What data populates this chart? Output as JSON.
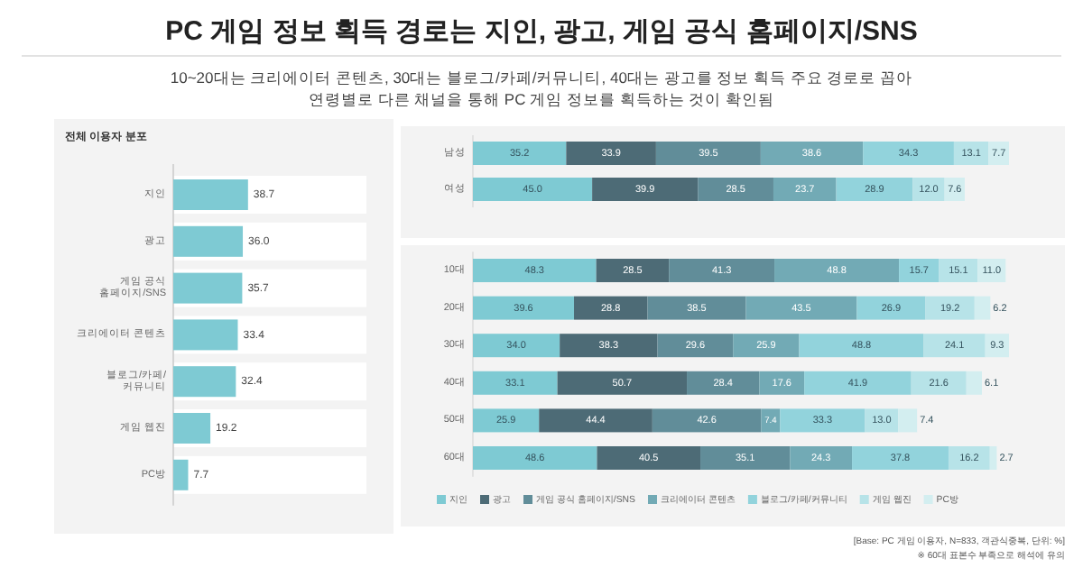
{
  "chart_data": [
    {
      "type": "bar",
      "orientation": "horizontal",
      "title": "PC 게임 정보 획득 경로는 지인, 광고, 게임 공식 홈페이지/SNS",
      "subtitle": "10~20대는 크리에이터 콘텐츠, 30대는 블로그/카페/커뮤니티, 40대는 광고를 정보 획득 주요 경로로 꼽아\n연령별로 다른 채널을 통해 PC 게임 정보를 획득하는 것이 확인됨",
      "annotations": [
        "전체 이용자 분포"
      ],
      "categories": [
        "지인",
        "광고",
        "게임 공식\n홈페이지/SNS",
        "크리에이터 콘텐츠",
        "블로그/카페/\n커뮤니티",
        "게임 웹진",
        "PC방"
      ],
      "values": [
        38.7,
        36.0,
        35.7,
        33.4,
        32.4,
        19.2,
        7.7
      ],
      "value_labels": [
        "38.7",
        "36.0",
        "35.7",
        "33.4",
        "32.4",
        "19.2",
        "7.7"
      ],
      "color": "#7ecad3",
      "legend": false
    },
    {
      "type": "bar",
      "orientation": "horizontal",
      "stacked": true,
      "legend": false,
      "categories": [
        "남성",
        "여성"
      ],
      "series": [
        {
          "color": "#7ecad3",
          "values": [
            35.2,
            45.0
          ],
          "value_labels": [
            "35.2",
            "45.0"
          ]
        },
        {
          "color": "#4d6b76",
          "values": [
            33.9,
            39.9
          ],
          "value_labels": [
            "33.9",
            "39.9"
          ]
        },
        {
          "color": "#618d99",
          "values": [
            39.5,
            28.5
          ],
          "value_labels": [
            "39.5",
            "28.5"
          ]
        },
        {
          "color": "#72aab5",
          "values": [
            38.6,
            23.7
          ],
          "value_labels": [
            "38.6",
            "23.7"
          ]
        },
        {
          "color": "#92d3dc",
          "values": [
            34.3,
            28.9
          ],
          "value_labels": [
            "34.3",
            "28.9"
          ]
        },
        {
          "color": "#b7e3e8",
          "values": [
            13.1,
            12.0
          ],
          "value_labels": [
            "13.1",
            "12.0"
          ]
        },
        {
          "color": "#d3eef0",
          "values": [
            7.7,
            7.6
          ],
          "value_labels": [
            "7.7",
            "7.6"
          ]
        }
      ]
    },
    {
      "type": "bar",
      "orientation": "horizontal",
      "stacked": true,
      "legend": "bottom",
      "annotations": [
        "[Base: PC 게임 이용자, N=833, 객관식중복, 단위: %]",
        "※ 60대 표본수 부족으로 해석에 유의"
      ],
      "categories": [
        "10대",
        "20대",
        "30대",
        "40대",
        "50대",
        "60대"
      ],
      "series": [
        {
          "name": "지인",
          "color": "#7ecad3",
          "values": [
            48.3,
            39.6,
            34.0,
            33.1,
            25.9,
            48.6
          ],
          "value_labels": [
            "48.3",
            "39.6",
            "34.0",
            "33.1",
            "25.9",
            "48.6"
          ]
        },
        {
          "name": "광고",
          "color": "#4d6b76",
          "values": [
            28.5,
            28.8,
            38.3,
            50.7,
            44.4,
            40.5
          ],
          "value_labels": [
            "28.5",
            "28.8",
            "38.3",
            "50.7",
            "44.4",
            "40.5"
          ]
        },
        {
          "name": "게임 공식 홈페이지/SNS",
          "color": "#618d99",
          "values": [
            41.3,
            38.5,
            29.6,
            28.4,
            42.6,
            35.1
          ],
          "value_labels": [
            "41.3",
            "38.5",
            "29.6",
            "28.4",
            "42.6",
            "35.1"
          ]
        },
        {
          "name": "크리에이터 콘텐츠",
          "color": "#72aab5",
          "values": [
            48.8,
            43.5,
            25.9,
            17.6,
            7.4,
            24.3
          ],
          "value_labels": [
            "48.8",
            "43.5",
            "25.9",
            "17.6",
            "7.4",
            "24.3"
          ]
        },
        {
          "name": "블로그/카페/커뮤니티",
          "color": "#92d3dc",
          "values": [
            15.7,
            26.9,
            48.8,
            41.9,
            33.3,
            37.8
          ],
          "value_labels": [
            "15.7",
            "26.9",
            "48.8",
            "41.9",
            "33.3",
            "37.8"
          ]
        },
        {
          "name": "게임 웹진",
          "color": "#b7e3e8",
          "values": [
            15.1,
            19.2,
            24.1,
            21.6,
            13.0,
            16.2
          ],
          "value_labels": [
            "15.1",
            "19.2",
            "24.1",
            "21.6",
            "13.0",
            "16.2"
          ]
        },
        {
          "name": "PC방",
          "color": "#d3eef0",
          "values": [
            11.0,
            6.2,
            9.3,
            6.1,
            7.4,
            2.7
          ],
          "value_labels": [
            "11.0",
            "6.2",
            "9.3",
            "6.1",
            "7.4",
            "2.7"
          ]
        }
      ]
    }
  ]
}
